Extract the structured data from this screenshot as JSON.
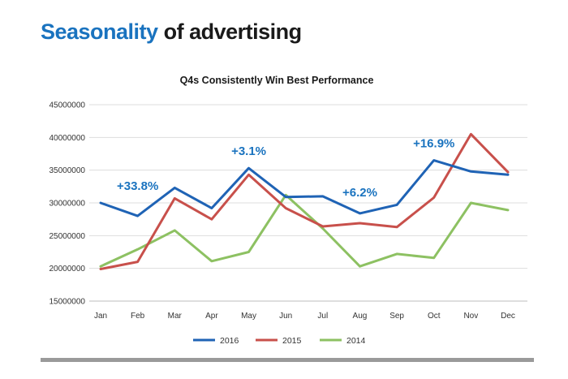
{
  "heading": {
    "accent": "Seasonality",
    "rest": " of advertising"
  },
  "colors": {
    "accent": "#1a73bf",
    "s2016": "#1f63b5",
    "s2015": "#c8504b",
    "s2014": "#8dc162",
    "annotation": "#1a73bf"
  },
  "chart_data": {
    "type": "line",
    "title": "Q4s Consistently Win Best Performance",
    "xlabel": "",
    "ylabel": "",
    "categories": [
      "Jan",
      "Feb",
      "Mar",
      "Apr",
      "May",
      "Jun",
      "Jul",
      "Aug",
      "Sep",
      "Oct",
      "Nov",
      "Dec"
    ],
    "y_ticks": [
      "45000000",
      "40000000",
      "35000000",
      "30000000",
      "25000000",
      "20000000",
      "15000000"
    ],
    "ylim": [
      15000000,
      45000000
    ],
    "grid": true,
    "legend_position": "bottom",
    "series": [
      {
        "name": "2016",
        "color": "#1f63b5",
        "values": [
          30000000,
          28000000,
          32300000,
          29200000,
          35300000,
          30900000,
          31000000,
          28400000,
          29700000,
          36500000,
          34800000,
          34300000
        ]
      },
      {
        "name": "2015",
        "color": "#c8504b",
        "values": [
          19900000,
          21000000,
          30700000,
          27500000,
          34300000,
          29200000,
          26400000,
          26900000,
          26300000,
          30800000,
          40500000,
          34700000
        ]
      },
      {
        "name": "2014",
        "color": "#8dc162",
        "values": [
          20300000,
          22900000,
          25800000,
          21100000,
          22500000,
          31200000,
          26100000,
          20300000,
          22200000,
          21600000,
          30000000,
          28900000
        ]
      }
    ],
    "annotations": [
      {
        "text": "+33.8%",
        "category": "Feb",
        "y": 32000000
      },
      {
        "text": "+3.1%",
        "category": "May",
        "y": 37300000
      },
      {
        "text": "+6.2%",
        "category": "Aug",
        "y": 31000000
      },
      {
        "text": "+16.9%",
        "category": "Oct",
        "y": 38500000
      }
    ]
  }
}
